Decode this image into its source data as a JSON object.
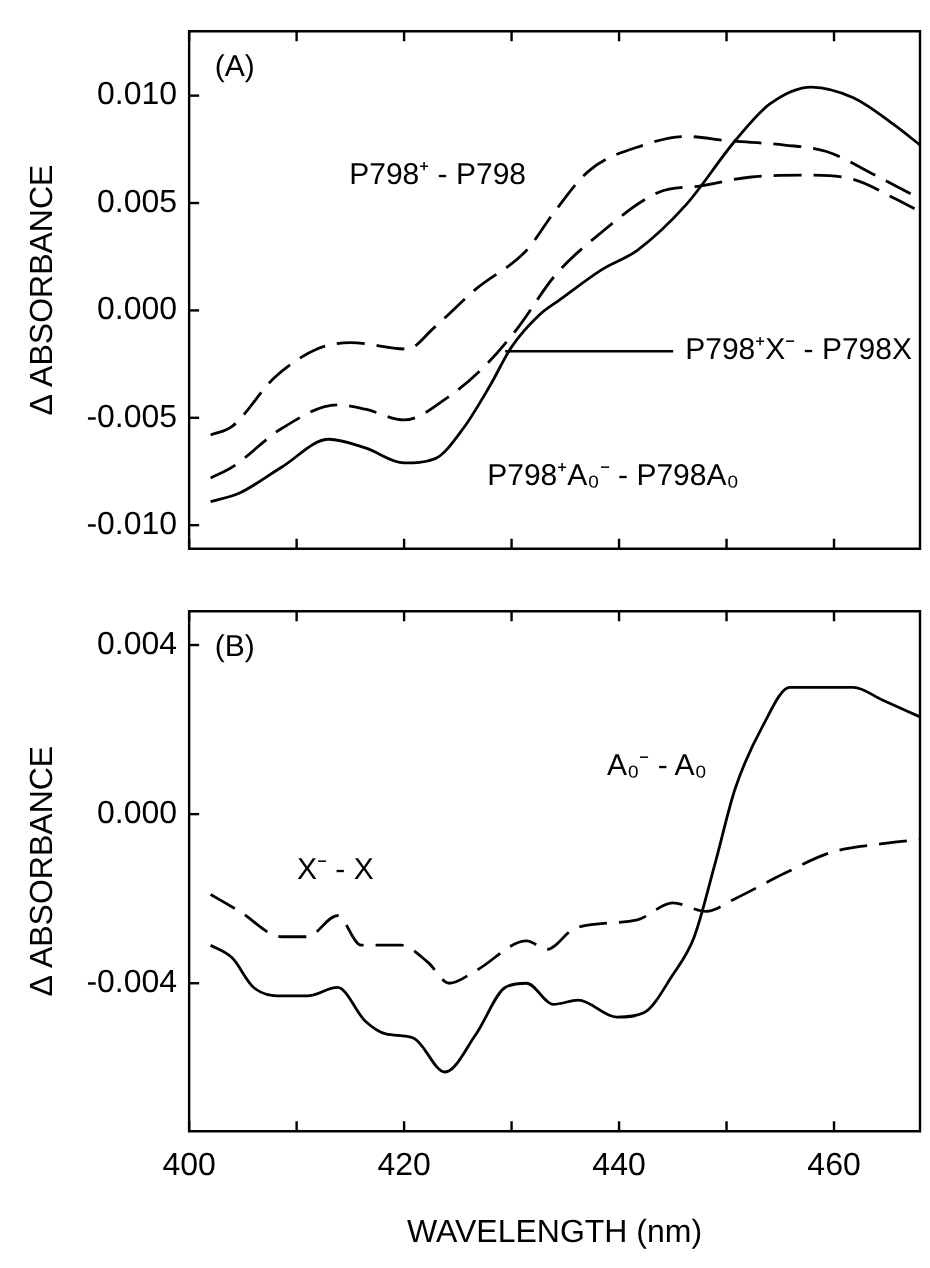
{
  "chart_data": [
    {
      "type": "line",
      "ylabel": "Δ ABSORBANCE",
      "xlim": [
        400,
        468
      ],
      "xticks": [
        400,
        410,
        420,
        430,
        440,
        450,
        460
      ],
      "ylim": [
        -0.0111,
        0.013
      ],
      "yticks": [
        {
          "value": 0.01,
          "label": "0.010"
        },
        {
          "value": 0.005,
          "label": "0.005"
        },
        {
          "value": 0,
          "label": "0.000"
        },
        {
          "value": -0.005,
          "label": "-0.005"
        },
        {
          "value": -0.01,
          "label": "-0.010"
        }
      ],
      "tick_labels": "y",
      "grid": false,
      "legend": false,
      "marker": "none",
      "series": [
        {
          "color": "#000000",
          "line_style": "solid",
          "x": [
            402,
            404.7,
            408.6,
            413,
            416.4,
            420,
            422.9,
            425.5,
            428,
            430,
            432.6,
            434.5,
            438.4,
            441.7,
            446.2,
            450.8,
            454,
            457.9,
            461.8,
            465.7,
            468
          ],
          "values": [
            -0.0089,
            -0.0085,
            -0.0073,
            -0.006,
            -0.0064,
            -0.0071,
            -0.0069,
            -0.0055,
            -0.0035,
            -0.0017,
            -0.0002,
            0.0005,
            0.0019,
            0.0028,
            0.0049,
            0.0079,
            0.0096,
            0.0104,
            0.0099,
            0.0086,
            0.0077
          ]
        },
        {
          "color": "#000000",
          "line_style": "dashed",
          "x": [
            402,
            404,
            408,
            411.9,
            415,
            420.3,
            422.8,
            426.7,
            431.4,
            434,
            437.2,
            442.3,
            446.2,
            450.1,
            455.4,
            459.3,
            463.8,
            468
          ],
          "values": [
            -0.0058,
            -0.0054,
            -0.0031,
            -0.0018,
            -0.0015,
            -0.0018,
            -0.0008,
            0.001,
            0.0028,
            0.0046,
            0.0065,
            0.0077,
            0.0081,
            0.0079,
            0.0077,
            0.0074,
            0.0063,
            0.0052
          ]
        },
        {
          "color": "#000000",
          "line_style": "dashed",
          "x": [
            402,
            404,
            408.6,
            413.8,
            416.4,
            420,
            424.2,
            427.5,
            430.6,
            434,
            437.8,
            443.7,
            447.6,
            452.1,
            457.3,
            461.8,
            465.7,
            468
          ],
          "values": [
            -0.0078,
            -0.0073,
            -0.0055,
            -0.0044,
            -0.0046,
            -0.0051,
            -0.004,
            -0.0026,
            -0.0008,
            0.0016,
            0.0034,
            0.0055,
            0.0058,
            0.0062,
            0.0063,
            0.0061,
            0.0052,
            0.0046
          ]
        }
      ],
      "annotations": [
        "(A)",
        "P798⁺ - P798",
        {
          "text": "P798⁺X⁻ - P798X",
          "x": 429.4,
          "y": -0.0019
        },
        "P798⁺A₀⁻ - P798A₀"
      ]
    },
    {
      "type": "line",
      "ylabel": "Δ ABSORBANCE",
      "xlabel": "WAVELENGTH (nm)",
      "xlim": [
        400,
        468
      ],
      "xticks": [
        400,
        {
          "value": 410,
          "label": null
        },
        420,
        {
          "value": 430,
          "label": null
        },
        440,
        {
          "value": 450,
          "label": null
        },
        460
      ],
      "ylim": [
        -0.0075,
        0.0048
      ],
      "yticks": [
        {
          "value": 0.004,
          "label": "0.004"
        },
        {
          "value": 0,
          "label": "0.000"
        },
        {
          "value": -0.004,
          "label": "-0.004"
        }
      ],
      "grid": false,
      "legend": false,
      "marker": "none",
      "series": [
        {
          "color": "#000000",
          "line_style": "solid",
          "x": [
            402,
            404,
            406,
            408.6,
            411,
            413.8,
            416.4,
            418.3,
            420.9,
            423.8,
            426.7,
            429.4,
            431.4,
            433.9,
            436.2,
            439.8,
            442.3,
            445,
            447,
            448.9,
            450.8,
            453.4,
            455.9,
            457.9,
            461.8,
            464.5,
            468
          ],
          "values": [
            -0.0031,
            -0.0034,
            -0.0041,
            -0.0043,
            -0.0043,
            -0.0041,
            -0.0049,
            -0.0052,
            -0.0053,
            -0.0061,
            -0.0052,
            -0.0041,
            -0.004,
            -0.0045,
            -0.0044,
            -0.0048,
            -0.0047,
            -0.0038,
            -0.0029,
            -0.0012,
            0.0006,
            0.0021,
            0.003,
            0.003,
            0.003,
            0.0027,
            0.0023
          ]
        },
        {
          "color": "#000000",
          "line_style": "dashed",
          "x": [
            402,
            404.7,
            408.6,
            411,
            413.8,
            416,
            419.7,
            422.2,
            424.2,
            426.7,
            431.4,
            433.3,
            435.9,
            441.7,
            445,
            448.1,
            450.8,
            455.4,
            459.8,
            464.5,
            468
          ],
          "values": [
            -0.0019,
            -0.0023,
            -0.0029,
            -0.0029,
            -0.0024,
            -0.0031,
            -0.0031,
            -0.0035,
            -0.004,
            -0.0037,
            -0.003,
            -0.0032,
            -0.0027,
            -0.0025,
            -0.0021,
            -0.0023,
            -0.002,
            -0.0014,
            -0.0009,
            -0.0007,
            -0.0006
          ]
        }
      ],
      "annotations": [
        "(B)",
        "X⁻ - X",
        "A₀⁻ - A₀"
      ]
    }
  ]
}
